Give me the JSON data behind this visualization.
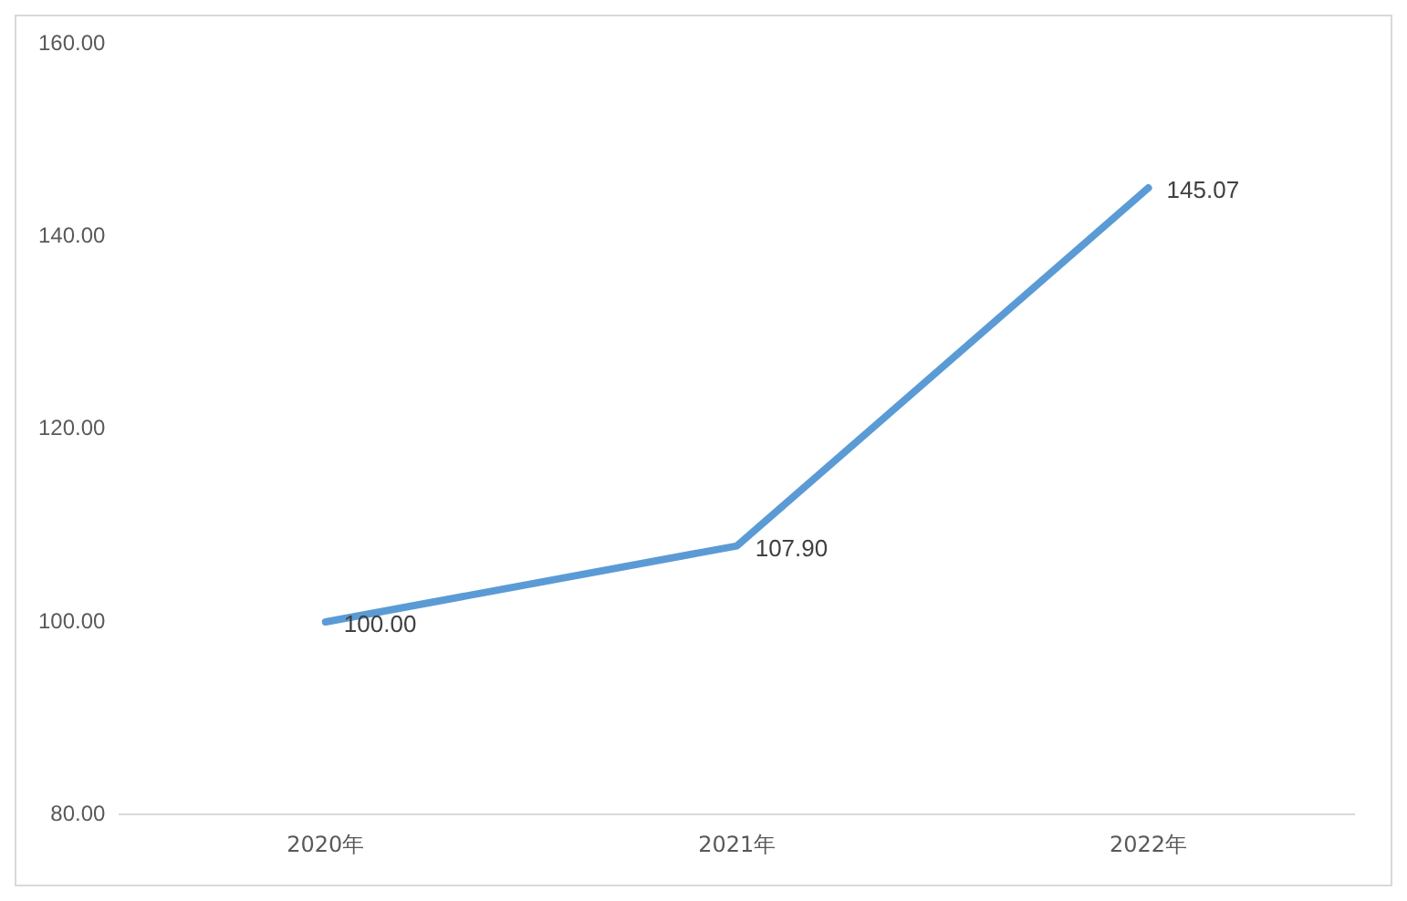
{
  "chart_data": {
    "type": "line",
    "categories": [
      "2020年",
      "2021年",
      "2022年"
    ],
    "series": [
      {
        "color": "#5b9bd5",
        "values": [
          100.0,
          107.9,
          145.07
        ]
      }
    ],
    "value_labels": [
      "100.00",
      "107.90",
      "145.07"
    ],
    "ylim": [
      80,
      160
    ],
    "yticks": [
      {
        "value": 80,
        "label": "80.00"
      },
      {
        "value": 100,
        "label": "100.00"
      },
      {
        "value": 120,
        "label": "120.00"
      },
      {
        "value": 140,
        "label": "140.00"
      },
      {
        "value": 160,
        "label": "160.00"
      }
    ],
    "grid": false,
    "legend": false,
    "marker": "none",
    "line_style": "solid"
  }
}
